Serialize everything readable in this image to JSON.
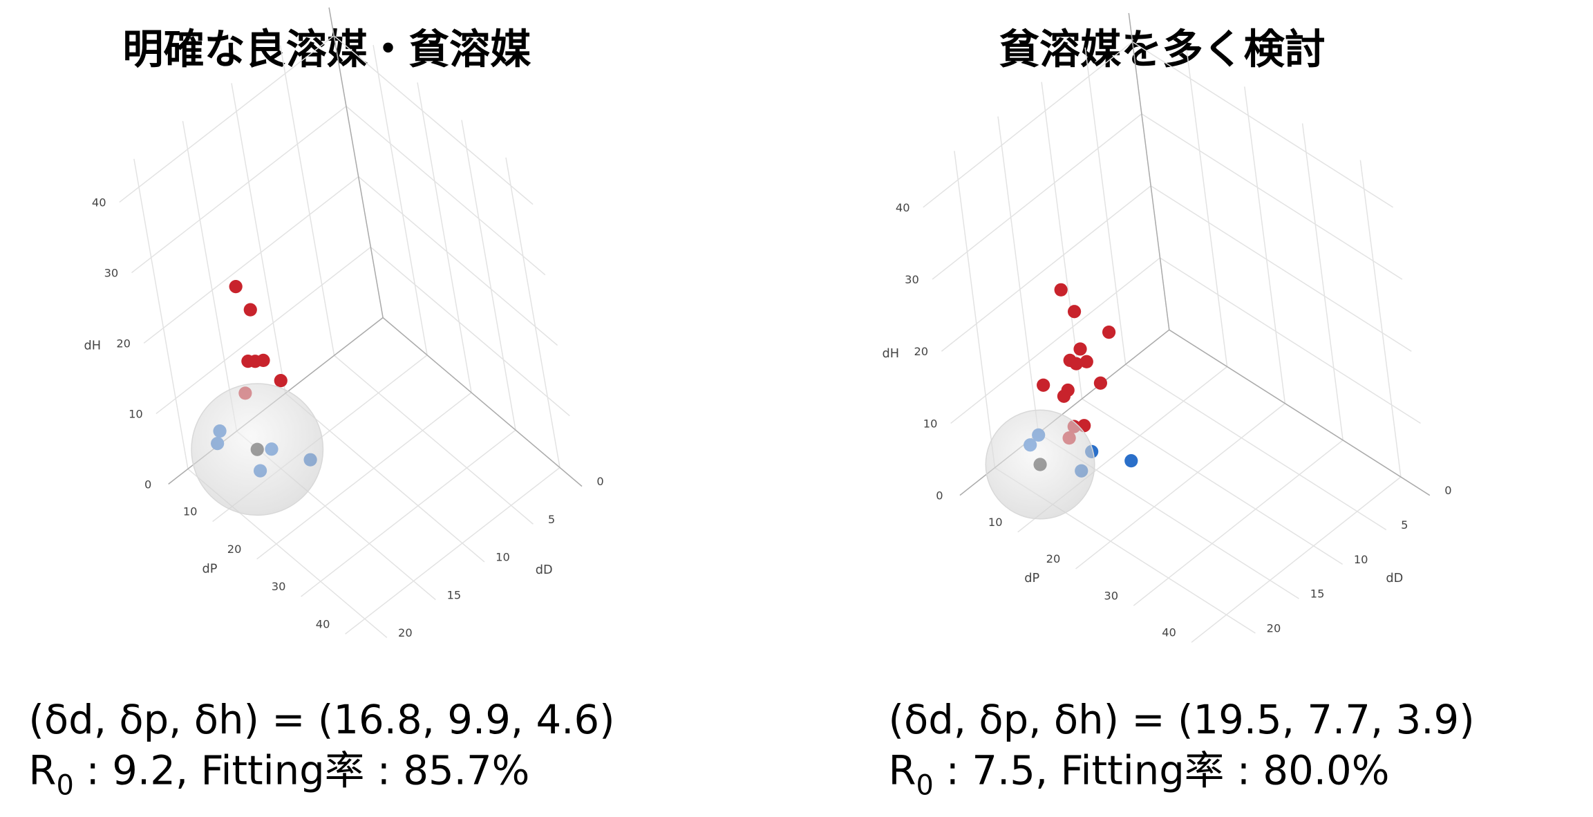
{
  "chart_data": [
    {
      "type": "scatter3d",
      "title": "明確な良溶媒・貧溶媒",
      "x_label": "dD",
      "y_label": "dP",
      "z_label": "dH",
      "xlim": [
        0,
        22
      ],
      "ylim": [
        0,
        45
      ],
      "zlim": [
        0,
        44
      ],
      "xticks": [
        0,
        5,
        10,
        15,
        20
      ],
      "yticks": [
        10,
        20,
        30,
        40
      ],
      "zticks": [
        0,
        10,
        20,
        30,
        40
      ],
      "series": [
        {
          "color": "#c8232c",
          "x": [
            17,
            17,
            17,
            17,
            17,
            17,
            17
          ],
          "y": [
            12.3,
            15.1,
            12.1,
            14.0,
            16.2,
            19.9,
            9.9
          ],
          "z": [
            29.2,
            27.4,
            18.5,
            19.5,
            20.8,
            19.9,
            12.8
          ]
        },
        {
          "color": "#2a6fc9",
          "x": [
            17,
            17,
            17,
            17,
            17
          ],
          "y": [
            1.4,
            0.2,
            14.3,
            10.3,
            24.1
          ],
          "z": [
            2.9,
            0.5,
            7.2,
            2.0,
            10.9
          ]
        },
        {
          "color": "#333333",
          "x": [
            16.8
          ],
          "y": [
            9.9
          ],
          "z": [
            4.6
          ]
        }
      ],
      "sphere_radius": 9.2,
      "result_formula": "(δd, δp, δh) = (16.8, 9.9, 4.6)",
      "result_symbol": "R",
      "result_subscript": "0",
      "result_text": ": 9.2, Fitting率 : 85.7%"
    },
    {
      "type": "scatter3d",
      "title": "貧溶媒を多く検討",
      "x_label": "dD",
      "y_label": "dP",
      "z_label": "dH",
      "xlim": [
        0,
        24
      ],
      "ylim": [
        0,
        45
      ],
      "zlim": [
        0,
        44
      ],
      "xticks": [
        0,
        5,
        10,
        15,
        20
      ],
      "yticks": [
        10,
        20,
        30,
        40
      ],
      "zticks": [
        0,
        10,
        20,
        30,
        40
      ],
      "series": [
        {
          "color": "#c8232c",
          "x": [
            19.5,
            19.5,
            19.5,
            19.5,
            19.5,
            19.5,
            19.5,
            19.5,
            19.5,
            19.5,
            19.5,
            19.5,
            19.5,
            19.5
          ],
          "y": [
            15.8,
            17.8,
            23.8,
            18.0,
            15.8,
            18.9,
            16.9,
            21.0,
            10.2,
            14.7,
            13.8,
            16.9,
            15.0,
            13.8
          ],
          "z": [
            32.3,
            30.3,
            30.5,
            25.2,
            22.5,
            23.9,
            22.6,
            22.0,
            16.2,
            17.8,
            16.5,
            14.0,
            12.9,
            10.7
          ]
        },
        {
          "color": "#2a6fc9",
          "x": [
            19.5,
            19.5,
            19.5,
            19.5,
            19.5
          ],
          "y": [
            8.1,
            6.3,
            17.7,
            15.3,
            24.9
          ],
          "z": [
            8.2,
            5.9,
            10.8,
            6.9,
            13.2
          ]
        },
        {
          "color": "#333333",
          "x": [
            19.5
          ],
          "y": [
            7.7
          ],
          "z": [
            3.9
          ]
        }
      ],
      "sphere_radius": 7.5,
      "result_formula": "(δd, δp, δh) = (19.5, 7.7, 3.9)",
      "result_symbol": "R",
      "result_subscript": "0",
      "result_text": ": 7.5, Fitting率 : 80.0%"
    }
  ]
}
